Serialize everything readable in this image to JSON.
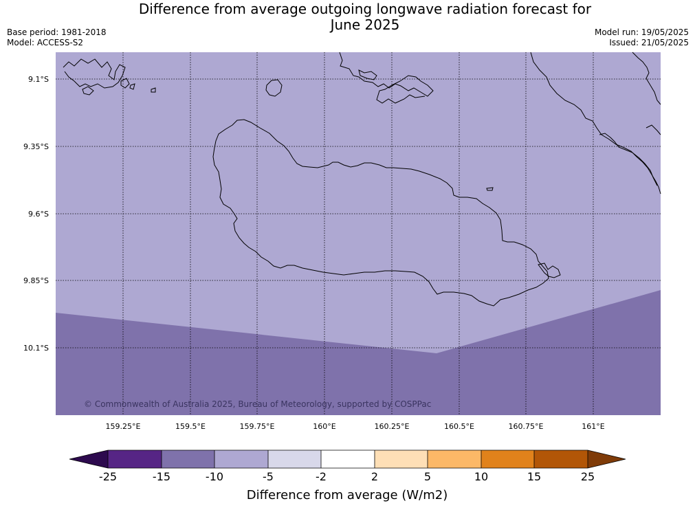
{
  "title_line1": "Difference from average outgoing longwave radiation forecast for",
  "title_line2": "June 2025",
  "base_period": "Base period: 1981-2018",
  "model": "Model: ACCESS-S2",
  "model_run": "Model run: 19/05/2025",
  "issued": "Issued: 21/05/2025",
  "copyright": "© Commonwealth of Australia 2025, Bureau of Meteorology, supported by COSPPac",
  "lat_labels": [
    "9.1°S",
    "9.35°S",
    "9.6°S",
    "9.85°S",
    "10.1°S"
  ],
  "lon_labels": [
    "159.25°E",
    "159.5°E",
    "159.75°E",
    "160°E",
    "160.25°E",
    "160.5°E",
    "160.75°E",
    "161°E"
  ],
  "colorbar": {
    "label": "Difference from average (W/m2)",
    "ticks": [
      "-25",
      "-15",
      "-10",
      "-5",
      "-2",
      "2",
      "5",
      "10",
      "15",
      "25"
    ],
    "colors": [
      "#2d0a4e",
      "#562585",
      "#7f72ab",
      "#aea8d2",
      "#d8d8ea",
      "#ffffff",
      "#fedfb6",
      "#fcb867",
      "#e1821b",
      "#b25607",
      "#7f3b08"
    ]
  },
  "map_colors": {
    "minus5_to_minus10": "#aea8d2",
    "minus10_to_minus15": "#7f72ab"
  }
}
